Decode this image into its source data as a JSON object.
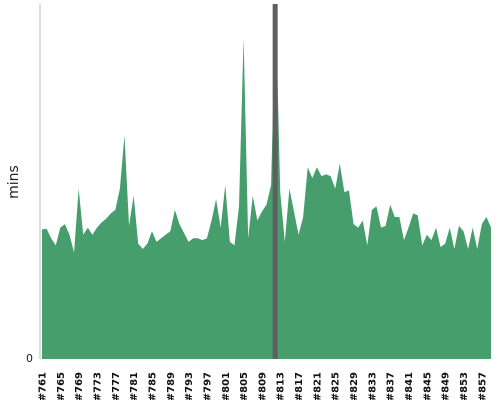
{
  "chart_data": {
    "type": "area",
    "title": "",
    "ylabel": "mins",
    "xlabel": "",
    "y_tick_labels": [
      "0"
    ],
    "ylim": [
      0,
      100
    ],
    "grid": false,
    "legend": "none",
    "colors": {
      "area": "#469e6d",
      "marker": "#5f5f5f",
      "axis": "#bbbbbb"
    },
    "highlight": {
      "build": 812
    },
    "x_start": 761,
    "x_end": 859,
    "x_tick_labels": [
      "#761",
      "#765",
      "#769",
      "#773",
      "#777",
      "#781",
      "#785",
      "#789",
      "#793",
      "#797",
      "#801",
      "#805",
      "#809",
      "#813",
      "#817",
      "#821",
      "#825",
      "#829",
      "#833",
      "#837",
      "#841",
      "#845",
      "#849",
      "#853",
      "#857"
    ],
    "values": [
      36.5,
      36.7,
      34.0,
      32.0,
      37.0,
      38.0,
      35.0,
      30.0,
      48.0,
      35.0,
      37.0,
      35.0,
      37.0,
      38.5,
      39.5,
      41.0,
      42.0,
      48.0,
      63.0,
      37.5,
      46.0,
      32.5,
      31.0,
      32.5,
      36.0,
      33.0,
      34.0,
      35.0,
      36.0,
      42.0,
      38.0,
      35.5,
      33.0,
      34.0,
      34.0,
      33.5,
      34.0,
      39.0,
      45.0,
      37.0,
      49.0,
      33.0,
      32.0,
      43.0,
      90.5,
      34.0,
      46.0,
      39.0,
      41.5,
      43.5,
      49.0,
      100.0,
      47.0,
      33.0,
      48.0,
      41.5,
      35.0,
      40.0,
      54.0,
      51.0,
      54.0,
      51.5,
      52.0,
      51.5,
      48.0,
      55.0,
      47.0,
      47.5,
      38.0,
      37.0,
      39.0,
      32.0,
      42.0,
      43.0,
      37.0,
      37.5,
      43.5,
      40.0,
      40.0,
      33.5,
      37.0,
      41.0,
      40.5,
      32.0,
      35.0,
      33.5,
      37.0,
      31.5,
      32.5,
      37.0,
      31.0,
      37.5,
      36.0,
      31.0,
      37.0,
      31.0,
      38.0,
      40.0,
      37.0
    ]
  }
}
